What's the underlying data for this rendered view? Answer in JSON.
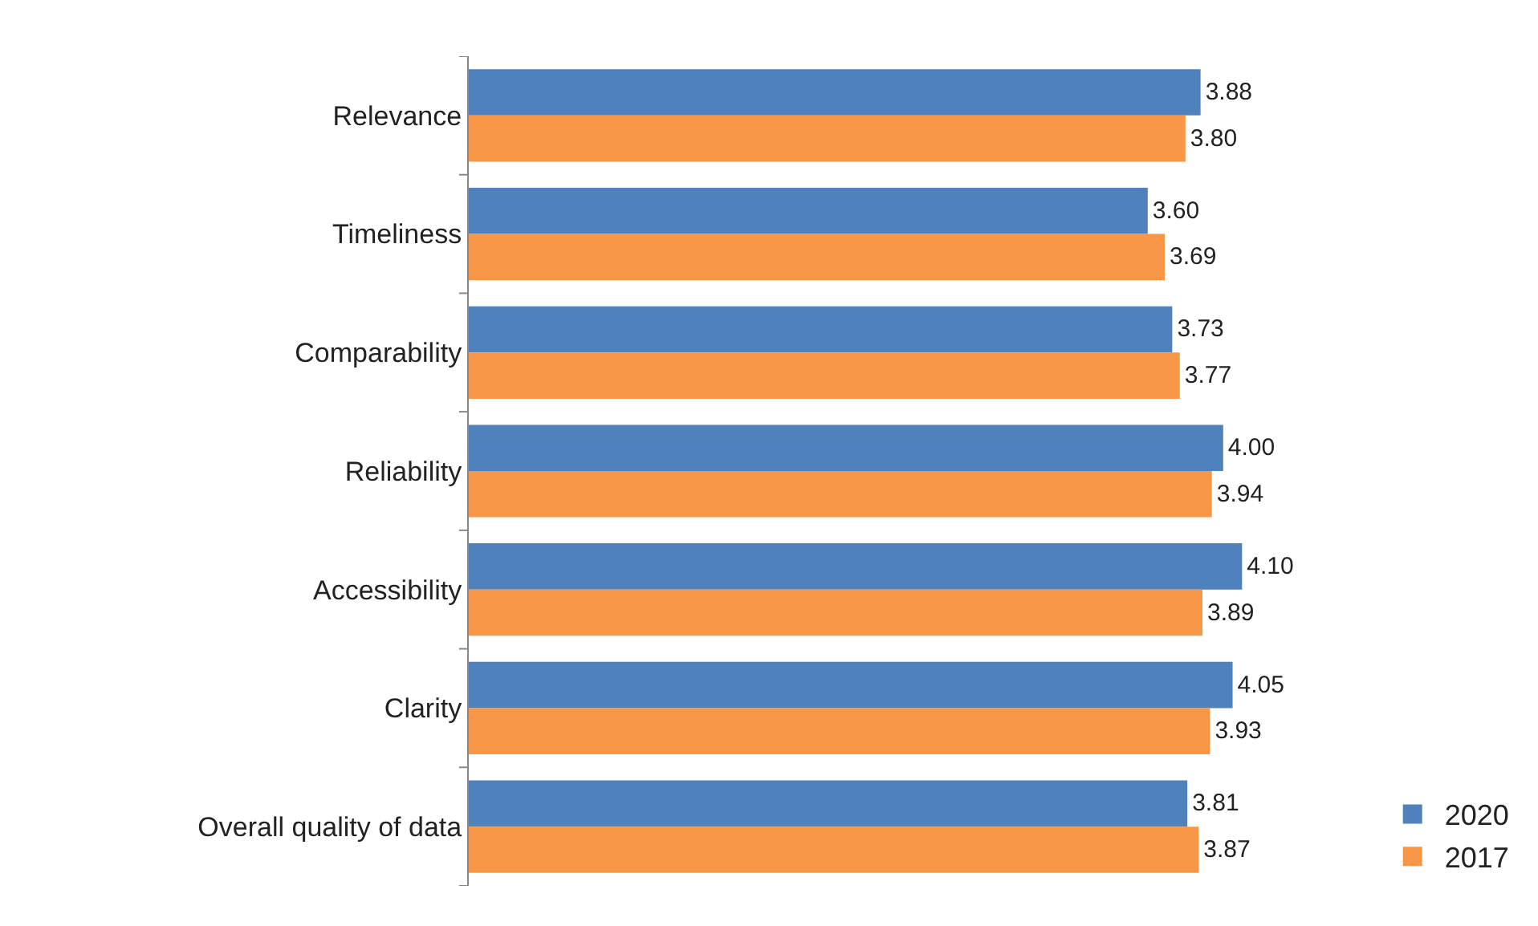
{
  "chart_data": {
    "type": "bar",
    "orientation": "horizontal",
    "legend": "bottom right",
    "grid": false,
    "tick_labels": "y",
    "categories": [
      "Relevance",
      "Timeliness",
      "Comparability",
      "Reliability",
      "Accessibility",
      "Clarity",
      "Overall quality of data"
    ],
    "series": [
      {
        "name": "2020",
        "color": "#4f81bd",
        "values": [
          3.88,
          3.6,
          3.73,
          4.0,
          4.1,
          4.05,
          3.81
        ],
        "value_labels": [
          "3.88",
          "3.60",
          "3.73",
          "4.00",
          "4.10",
          "4.05",
          "3.81"
        ]
      },
      {
        "name": "2017",
        "color": "#f79646",
        "values": [
          3.8,
          3.69,
          3.77,
          3.94,
          3.89,
          3.93,
          3.87
        ],
        "value_labels": [
          "3.80",
          "3.69",
          "3.77",
          "3.94",
          "3.89",
          "3.93",
          "3.87"
        ]
      }
    ]
  }
}
